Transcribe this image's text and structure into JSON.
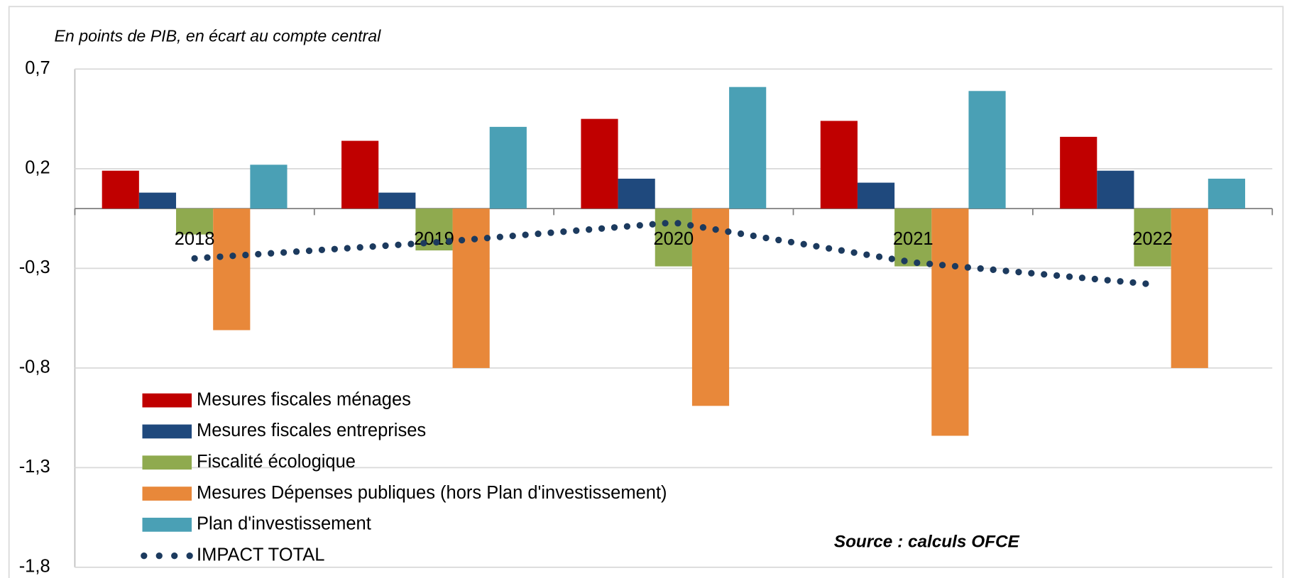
{
  "chart_data": {
    "type": "bar",
    "subtitle": "En points de PIB, en écart au compte central",
    "source": "Source : calculs OFCE",
    "categories": [
      "2018",
      "2019",
      "2020",
      "2021",
      "2022"
    ],
    "series": [
      {
        "name": "Mesures fiscales ménages",
        "color": "#c00000",
        "values": [
          0.19,
          0.34,
          0.45,
          0.44,
          0.36
        ]
      },
      {
        "name": "Mesures fiscales entreprises",
        "color": "#1f497d",
        "values": [
          0.08,
          0.08,
          0.15,
          0.13,
          0.19
        ]
      },
      {
        "name": "Fiscalité écologique",
        "color": "#8faa4f",
        "values": [
          -0.13,
          -0.21,
          -0.29,
          -0.29,
          -0.29
        ]
      },
      {
        "name": "Mesures Dépenses publiques (hors Plan d'investissement)",
        "color": "#e8883a",
        "values": [
          -0.61,
          -0.8,
          -0.99,
          -1.14,
          -0.8
        ]
      },
      {
        "name": "Plan d'investissement",
        "color": "#4aa0b5",
        "values": [
          0.22,
          0.41,
          0.61,
          0.59,
          0.15
        ]
      },
      {
        "name": "IMPACT TOTAL",
        "type": "line",
        "color": "#1c3a5e",
        "values": [
          -0.25,
          -0.17,
          -0.07,
          -0.27,
          -0.38
        ]
      }
    ],
    "ylim": [
      -1.8,
      0.7
    ],
    "yticks": [
      {
        "value": 0.7,
        "label": "0,7"
      },
      {
        "value": 0.2,
        "label": "0,2"
      },
      {
        "value": -0.3,
        "label": "-0,3"
      },
      {
        "value": -0.8,
        "label": "-0,8"
      },
      {
        "value": -1.3,
        "label": "-1,3"
      },
      {
        "value": -1.8,
        "label": "-1,8"
      }
    ],
    "grid": true
  }
}
